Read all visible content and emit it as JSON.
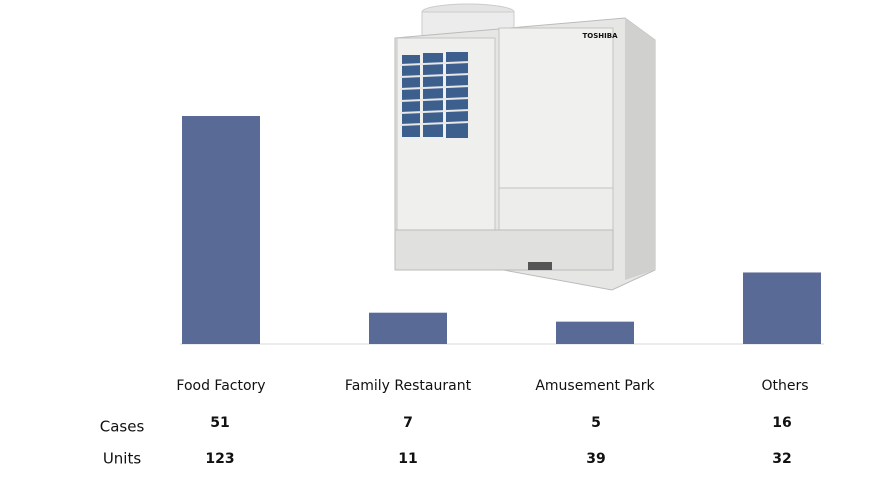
{
  "chart_data": {
    "type": "bar",
    "categories": [
      "Food Factory",
      "Family Restaurant",
      "Amusement Park",
      "Others"
    ],
    "color": "#5a6a96",
    "table": [
      {
        "name": "Cases",
        "values": [
          51,
          7,
          5,
          16
        ]
      },
      {
        "name": "Units",
        "values": [
          123,
          11,
          39,
          32
        ]
      }
    ],
    "product_label": "TOSHIBA"
  }
}
